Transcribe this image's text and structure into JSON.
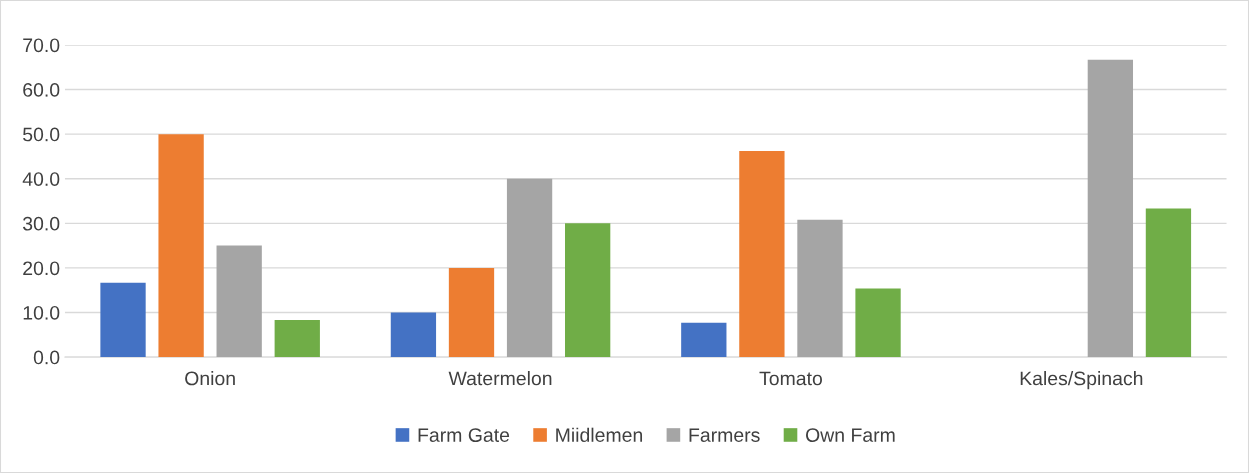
{
  "chart_data": {
    "type": "bar",
    "categories": [
      "Onion",
      "Watermelon",
      "Tomato",
      "Kales/Spinach"
    ],
    "series": [
      {
        "name": "Farm Gate",
        "color": "#4472c4",
        "values": [
          16.7,
          10.0,
          7.7,
          0
        ]
      },
      {
        "name": "Miidlemen",
        "color": "#ed7d31",
        "values": [
          50.0,
          20.0,
          46.2,
          0
        ]
      },
      {
        "name": "Farmers",
        "color": "#a5a5a5",
        "values": [
          25.0,
          40.0,
          30.8,
          66.7
        ]
      },
      {
        "name": "Own Farm",
        "color": "#70ad47",
        "values": [
          8.3,
          30.0,
          15.4,
          33.3
        ]
      }
    ],
    "ylim": [
      0,
      70
    ],
    "yticks": [
      {
        "value": 0,
        "label": "0.0"
      },
      {
        "value": 10,
        "label": "10.0"
      },
      {
        "value": 20,
        "label": "20.0"
      },
      {
        "value": 30,
        "label": "30.0"
      },
      {
        "value": 40,
        "label": "40.0"
      },
      {
        "value": 50,
        "label": "50.0"
      },
      {
        "value": 60,
        "label": "60.0"
      },
      {
        "value": 70,
        "label": "70.0"
      }
    ],
    "grid": "y",
    "legend": "bottom"
  }
}
